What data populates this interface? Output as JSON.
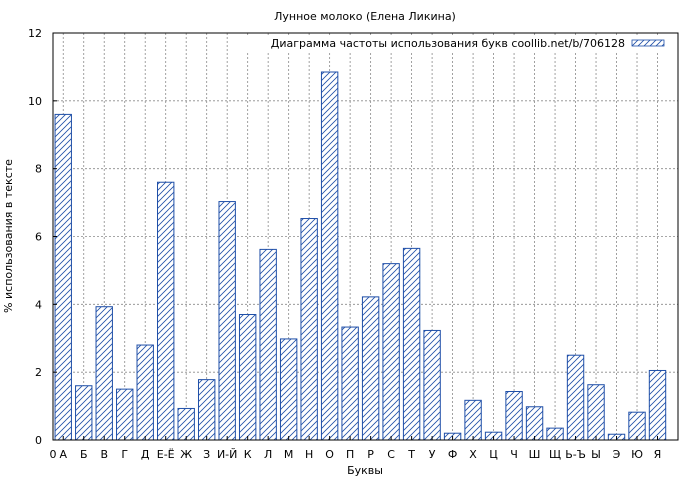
{
  "chart_data": {
    "type": "bar",
    "title": "Лунное молоко (Елена Ликина)",
    "xlabel": "Буквы",
    "ylabel": "% использования в тексте",
    "legend": {
      "label": "Диаграмма частоты использования букв coollib.net/b/706128",
      "placement": "top-right"
    },
    "ylim": [
      0,
      12
    ],
    "yticks": [
      0,
      2,
      4,
      6,
      8,
      10,
      12
    ],
    "x_origin_label": "0",
    "grid": true,
    "bar_color": "#1f4fa8",
    "categories": [
      "А",
      "Б",
      "В",
      "Г",
      "Д",
      "Е-Ё",
      "Ж",
      "З",
      "И-Й",
      "К",
      "Л",
      "М",
      "Н",
      "О",
      "П",
      "Р",
      "С",
      "Т",
      "У",
      "Ф",
      "Х",
      "Ц",
      "Ч",
      "Ш",
      "Щ",
      "Ь-Ъ",
      "Ы",
      "Э",
      "Ю",
      "Я"
    ],
    "values": [
      9.6,
      1.6,
      3.93,
      1.5,
      2.8,
      7.6,
      0.93,
      1.78,
      7.03,
      3.7,
      5.62,
      2.98,
      6.53,
      10.85,
      3.33,
      4.22,
      5.2,
      5.65,
      3.23,
      0.2,
      1.17,
      0.23,
      1.43,
      0.98,
      0.35,
      2.5,
      1.63,
      0.17,
      0.82,
      2.05
    ]
  }
}
